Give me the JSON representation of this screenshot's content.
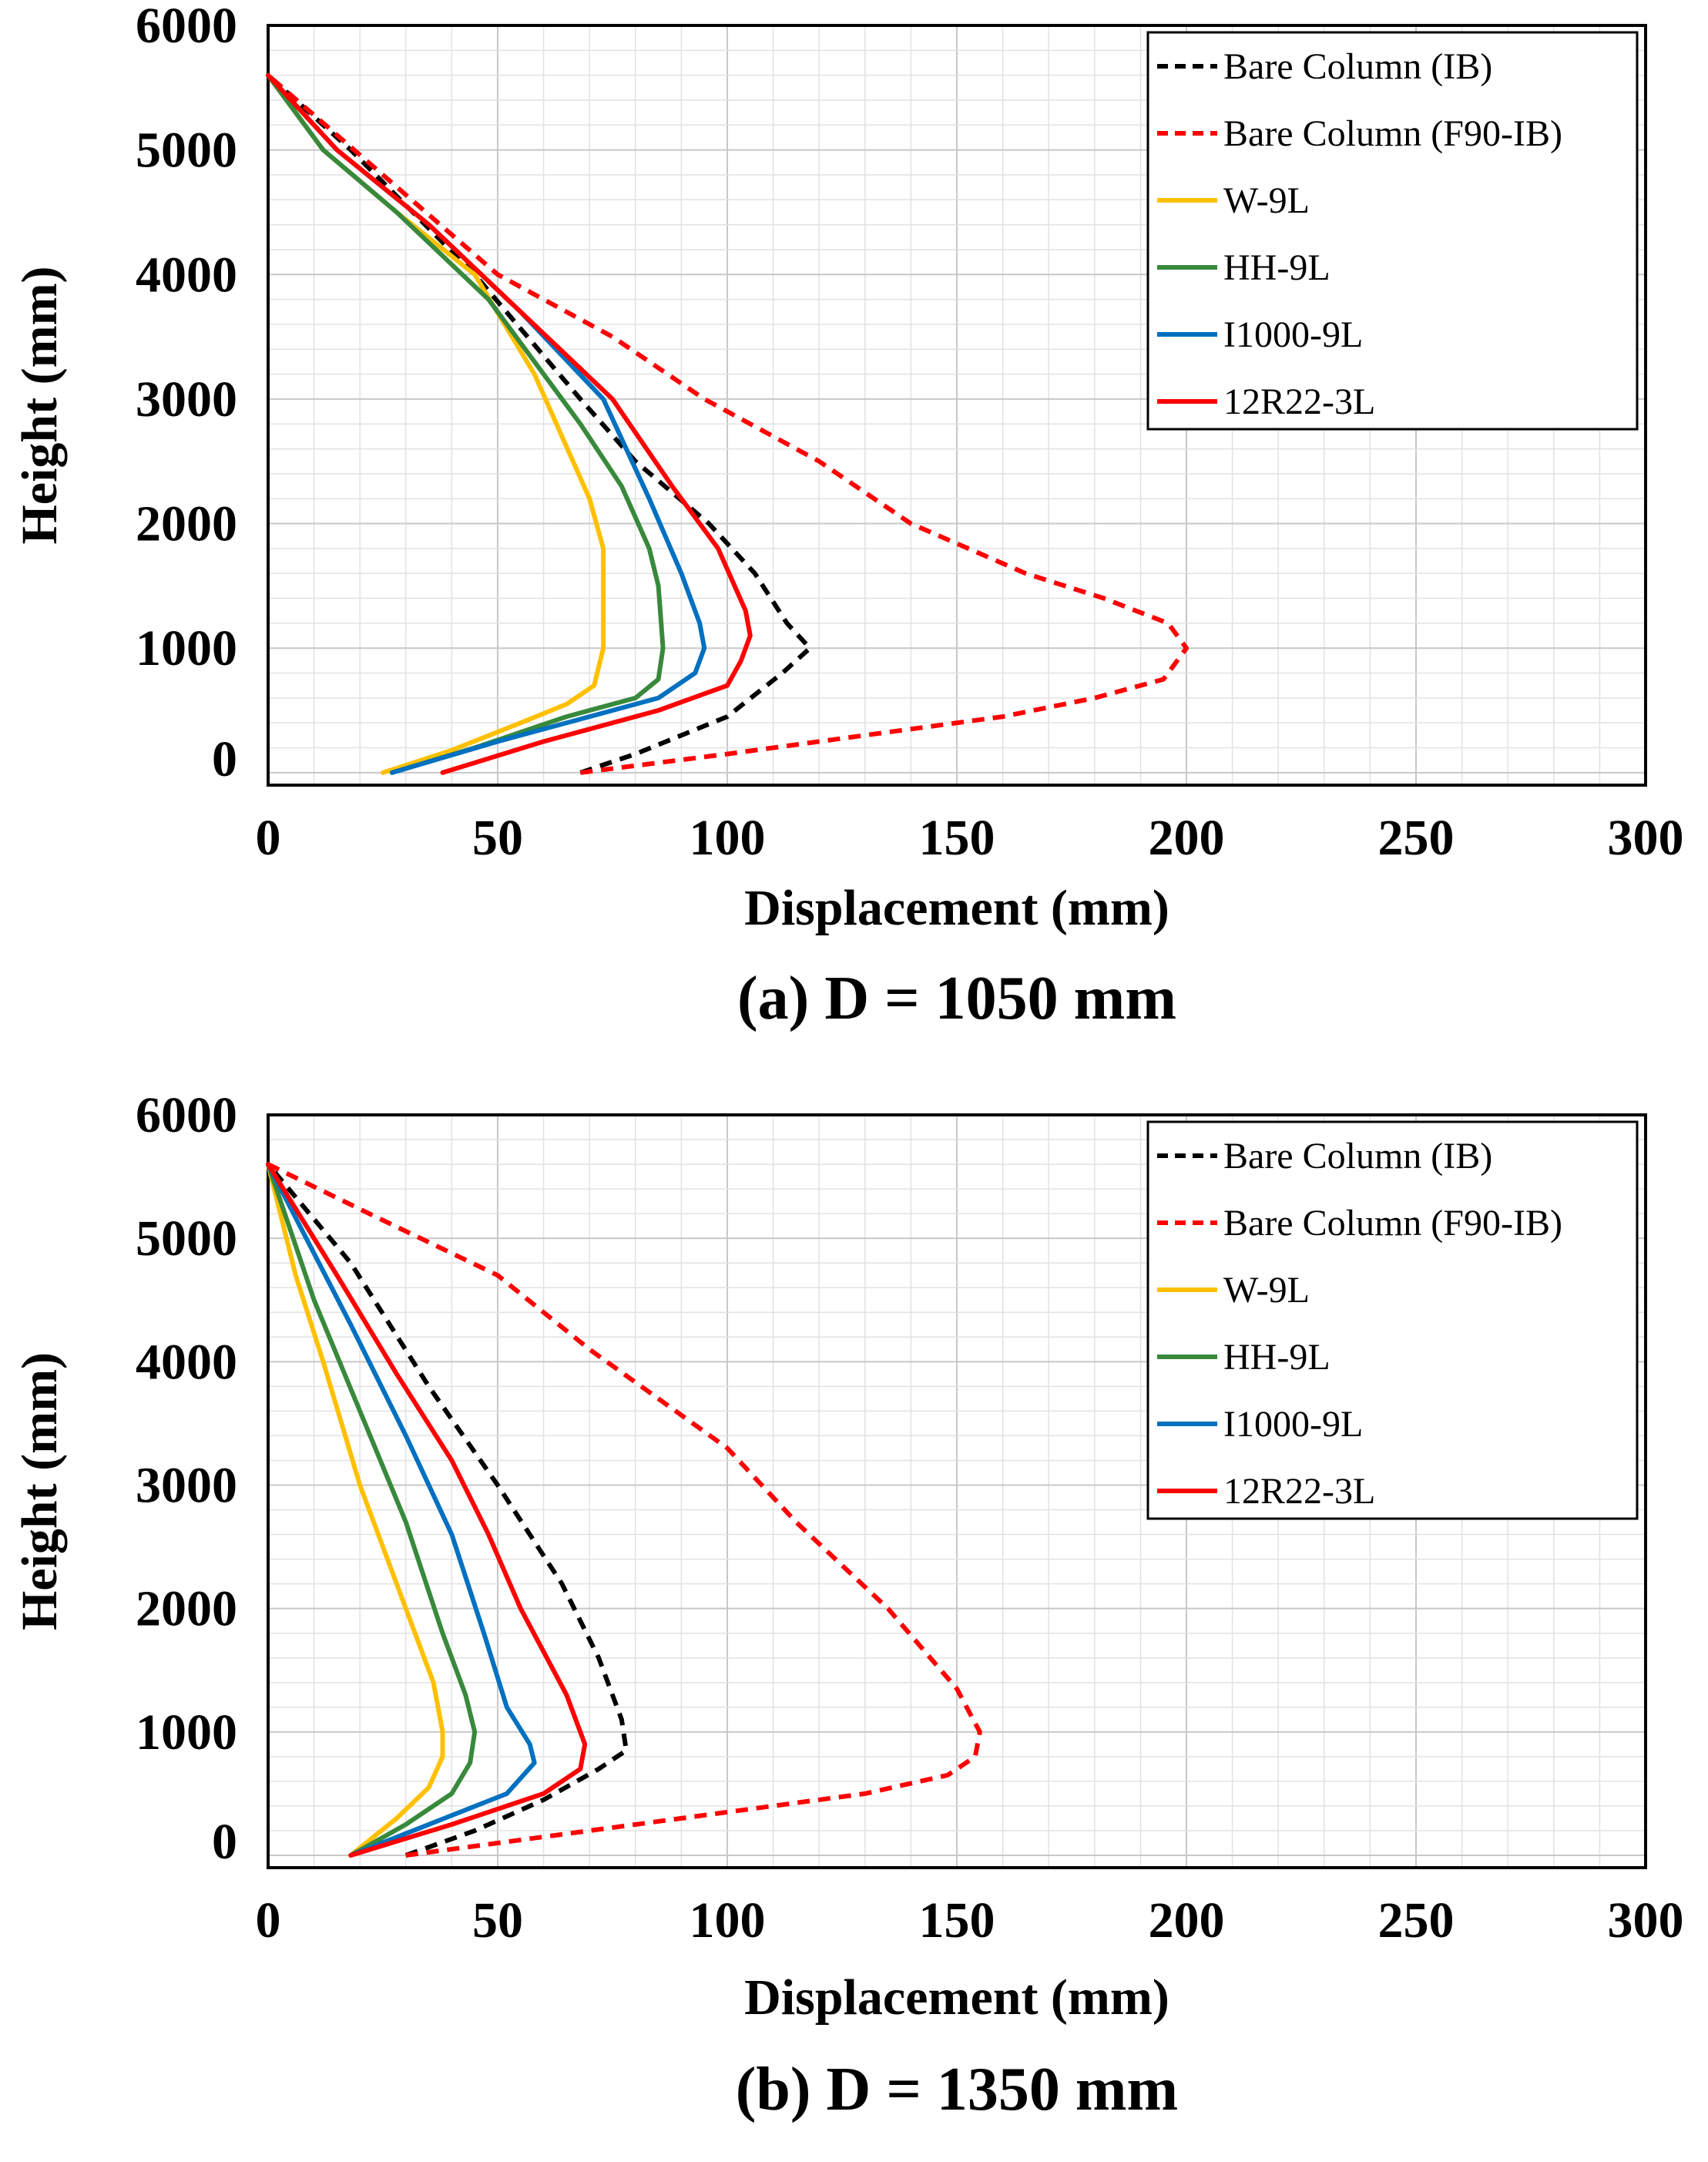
{
  "chart_data": [
    {
      "type": "line",
      "caption": "(a) D = 1050 mm",
      "xlabel": "Displacement (mm)",
      "ylabel": "Height (mm)",
      "xlim": [
        0,
        300
      ],
      "ylim": [
        -100,
        6000
      ],
      "x_ticks": [
        "0",
        "50",
        "100",
        "150",
        "200",
        "250",
        "300"
      ],
      "y_ticks": [
        "0",
        "1000",
        "2000",
        "3000",
        "4000",
        "5000",
        "6000"
      ],
      "grid": true,
      "legend_position": "top-right",
      "series": [
        {
          "name": "Bare Column (IB)",
          "color": "#000000",
          "dashed": true,
          "x": [
            68,
            80,
            100,
            112,
            118,
            113,
            106,
            96,
            80,
            68,
            45,
            18,
            0
          ],
          "y": [
            0,
            150,
            450,
            800,
            1000,
            1200,
            1600,
            2000,
            2500,
            3000,
            4000,
            5000,
            5600
          ]
        },
        {
          "name": "Bare Column (F90-IB)",
          "color": "#ff0000",
          "dashed": true,
          "x": [
            68,
            100,
            130,
            160,
            180,
            195,
            200,
            196,
            182,
            165,
            140,
            120,
            95,
            75,
            50,
            25,
            0
          ],
          "y": [
            0,
            150,
            300,
            450,
            600,
            750,
            1000,
            1200,
            1400,
            1600,
            2000,
            2500,
            3000,
            3500,
            4000,
            4800,
            5600
          ]
        },
        {
          "name": "W-9L",
          "color": "#ffc000",
          "dashed": false,
          "x": [
            25,
            40,
            55,
            65,
            71,
            73,
            73,
            73,
            70,
            64,
            58,
            45,
            28,
            12,
            0
          ],
          "y": [
            0,
            180,
            400,
            550,
            700,
            1000,
            1500,
            1800,
            2200,
            2700,
            3200,
            4000,
            4500,
            5000,
            5600
          ]
        },
        {
          "name": "HH-9L",
          "color": "#38893c",
          "dashed": false,
          "x": [
            27,
            45,
            65,
            80,
            85,
            86,
            85,
            83,
            77,
            68,
            48,
            28,
            12,
            0
          ],
          "y": [
            0,
            200,
            450,
            600,
            750,
            1000,
            1500,
            1800,
            2300,
            2800,
            3800,
            4500,
            5000,
            5600
          ]
        },
        {
          "name": "I1000-9L",
          "color": "#0070c0",
          "dashed": false,
          "x": [
            27,
            50,
            70,
            85,
            93,
            95,
            94,
            90,
            83,
            73,
            55,
            35,
            15,
            0
          ],
          "y": [
            0,
            250,
            450,
            600,
            800,
            1000,
            1200,
            1600,
            2200,
            3000,
            3700,
            4400,
            5000,
            5600
          ]
        },
        {
          "name": "12R22-3L",
          "color": "#ff0000",
          "dashed": false,
          "x": [
            38,
            60,
            85,
            100,
            103,
            105,
            104,
            98,
            88,
            75,
            55,
            35,
            15,
            0
          ],
          "y": [
            0,
            250,
            500,
            700,
            900,
            1100,
            1300,
            1800,
            2300,
            3000,
            3700,
            4400,
            5000,
            5600
          ]
        }
      ]
    },
    {
      "type": "line",
      "caption": "(b) D = 1350 mm",
      "xlabel": "Displacement (mm)",
      "ylabel": "Height (mm)",
      "xlim": [
        0,
        300
      ],
      "ylim": [
        -100,
        6000
      ],
      "x_ticks": [
        "0",
        "50",
        "100",
        "150",
        "200",
        "250",
        "300"
      ],
      "y_ticks": [
        "0",
        "1000",
        "2000",
        "3000",
        "4000",
        "5000",
        "6000"
      ],
      "grid": true,
      "legend_position": "top-right",
      "series": [
        {
          "name": "Bare Column (IB)",
          "color": "#000000",
          "dashed": true,
          "x": [
            30,
            45,
            60,
            72,
            78,
            77,
            72,
            64,
            50,
            35,
            18,
            0
          ],
          "y": [
            0,
            200,
            450,
            700,
            850,
            1100,
            1600,
            2200,
            3000,
            3800,
            4800,
            5600
          ]
        },
        {
          "name": "Bare Column (F90-IB)",
          "color": "#ff0000",
          "dashed": true,
          "x": [
            30,
            60,
            100,
            130,
            148,
            154,
            155,
            150,
            135,
            115,
            100,
            70,
            50,
            22,
            0
          ],
          "y": [
            0,
            150,
            350,
            500,
            650,
            800,
            1000,
            1350,
            2000,
            2700,
            3300,
            4100,
            4700,
            5200,
            5600
          ]
        },
        {
          "name": "W-9L",
          "color": "#ffc000",
          "dashed": false,
          "x": [
            18,
            28,
            35,
            38,
            38,
            36,
            30,
            20,
            12,
            6,
            0
          ],
          "y": [
            0,
            300,
            550,
            800,
            1000,
            1400,
            2000,
            3000,
            4000,
            4700,
            5600
          ]
        },
        {
          "name": "HH-9L",
          "color": "#38893c",
          "dashed": false,
          "x": [
            18,
            30,
            40,
            44,
            45,
            43,
            38,
            30,
            20,
            10,
            0
          ],
          "y": [
            0,
            250,
            500,
            750,
            1000,
            1300,
            1800,
            2700,
            3600,
            4500,
            5600
          ]
        },
        {
          "name": "I1000-9L",
          "color": "#0070c0",
          "dashed": false,
          "x": [
            18,
            35,
            52,
            58,
            57,
            52,
            47,
            40,
            30,
            18,
            0
          ],
          "y": [
            0,
            250,
            500,
            750,
            900,
            1200,
            1800,
            2600,
            3400,
            4300,
            5600
          ]
        },
        {
          "name": "12R22-3L",
          "color": "#ff0000",
          "dashed": false,
          "x": [
            18,
            40,
            60,
            68,
            69,
            65,
            55,
            48,
            40,
            28,
            15,
            0
          ],
          "y": [
            0,
            250,
            500,
            700,
            900,
            1300,
            2000,
            2600,
            3200,
            3900,
            4700,
            5600
          ]
        }
      ]
    }
  ]
}
